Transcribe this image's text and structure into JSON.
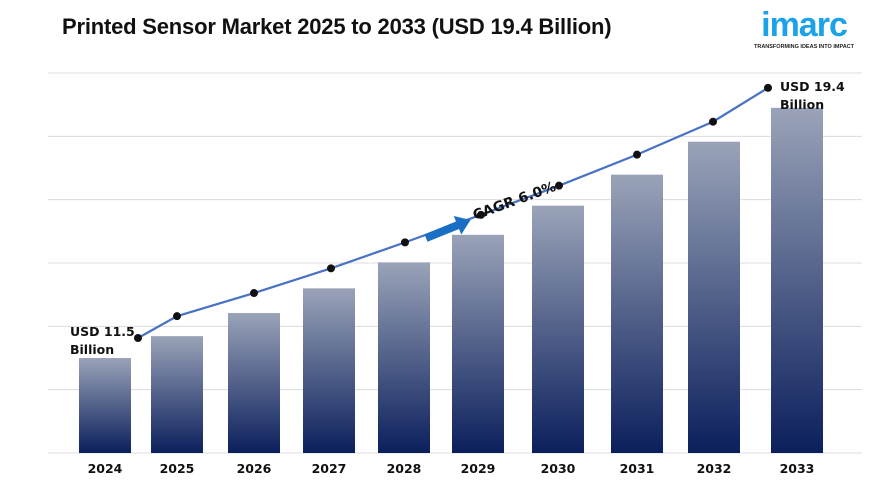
{
  "chart_data": {
    "type": "bar",
    "title": "Printed Sensor Market 2025 to 2033 (USD 19.4 Billion)",
    "categories": [
      "2024",
      "2025",
      "2026",
      "2027",
      "2028",
      "2029",
      "2030",
      "2031",
      "2032",
      "2033"
    ],
    "values": [
      11.5,
      12.19,
      12.92,
      13.7,
      14.52,
      15.39,
      16.31,
      17.29,
      18.33,
      19.4
    ],
    "unit": "USD Billion",
    "xlabel": "",
    "ylabel": "",
    "ylim": [
      8.5,
      20.5
    ],
    "grid": true,
    "overlay_line": true,
    "annotations": {
      "start_line1": "USD 11.5",
      "start_line2": "Billion",
      "end_line1": "USD 19.4",
      "end_line2": "Billion",
      "cagr": "CAGR 6.0%"
    },
    "colors": {
      "bar_top": "#9aa3b8",
      "bar_bottom": "#0b1f5c",
      "line": "#4a72c4",
      "marker": "#111111",
      "arrow": "#1a6fc4"
    }
  },
  "logo": {
    "word": "imarc",
    "tagline": "TRANSFORMING IDEAS INTO IMPACT"
  }
}
